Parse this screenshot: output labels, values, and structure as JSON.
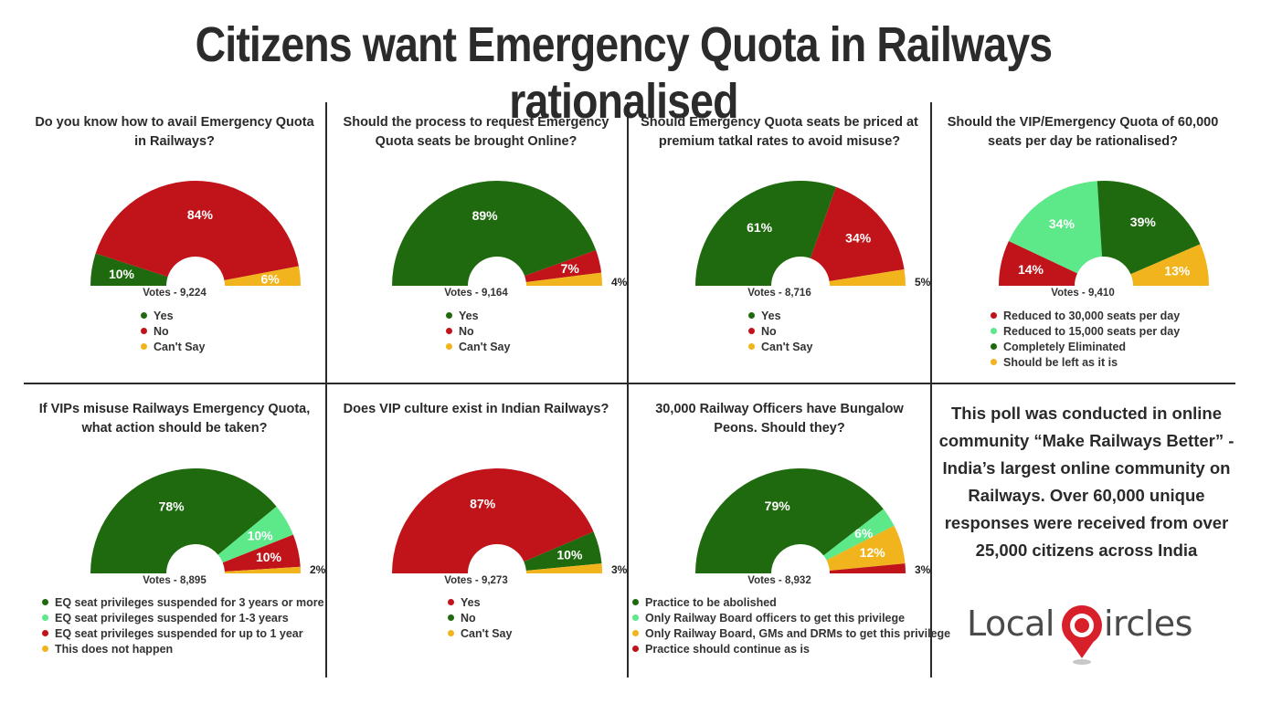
{
  "title": "Citizens want Emergency Quota in Railways rationalised",
  "colors": {
    "yes": "#1f6a0e",
    "no": "#c0141a",
    "cantsay": "#f1b41d",
    "light_green": "#5de88a",
    "divider": "#2a2a2a"
  },
  "chart_data": [
    {
      "type": "pie",
      "title": "Do you know how to avail Emergency Quota in Railways?",
      "votes": "Votes - 9,224",
      "slices": [
        {
          "label": "Yes",
          "value": 10,
          "text": "10%",
          "color": "#1f6a0e"
        },
        {
          "label": "No",
          "value": 84,
          "text": "84%",
          "color": "#c0141a"
        },
        {
          "label": "Can't Say",
          "value": 6,
          "text": "6%",
          "color": "#f1b41d"
        }
      ]
    },
    {
      "type": "pie",
      "title": "Should the process to request Emergency Quota seats be brought Online?",
      "votes": "Votes - 9,164",
      "slices": [
        {
          "label": "Yes",
          "value": 89,
          "text": "89%",
          "color": "#1f6a0e"
        },
        {
          "label": "No",
          "value": 7,
          "text": "7%",
          "color": "#c0141a"
        },
        {
          "label": "Can't Say",
          "value": 4,
          "text": "4%",
          "color": "#f1b41d"
        }
      ]
    },
    {
      "type": "pie",
      "title": "Should Emergency Quota seats be priced at premium tatkal rates to avoid misuse?",
      "votes": "Votes - 8,716",
      "slices": [
        {
          "label": "Yes",
          "value": 61,
          "text": "61%",
          "color": "#1f6a0e"
        },
        {
          "label": "No",
          "value": 34,
          "text": "34%",
          "color": "#c0141a"
        },
        {
          "label": "Can't Say",
          "value": 5,
          "text": "5%",
          "color": "#f1b41d"
        }
      ]
    },
    {
      "type": "pie",
      "title": "Should the VIP/Emergency Quota of 60,000 seats per day be rationalised?",
      "votes": "Votes - 9,410",
      "slices": [
        {
          "label": "Reduced to 30,000 seats per day",
          "value": 14,
          "text": "14%",
          "color": "#c0141a"
        },
        {
          "label": "Reduced to 15,000 seats per day",
          "value": 34,
          "text": "34%",
          "color": "#5de88a"
        },
        {
          "label": "Completely Eliminated",
          "value": 39,
          "text": "39%",
          "color": "#1f6a0e"
        },
        {
          "label": "Should be left as it is",
          "value": 13,
          "text": "13%",
          "color": "#f1b41d"
        }
      ]
    },
    {
      "type": "pie",
      "title": "If VIPs misuse Railways Emergency Quota, what action should be taken?",
      "votes": "Votes - 8,895",
      "slices": [
        {
          "label": "EQ seat privileges suspended for 3 years or more",
          "value": 78,
          "text": "78%",
          "color": "#1f6a0e"
        },
        {
          "label": "EQ seat privileges suspended for 1-3 years",
          "value": 10,
          "text": "10%",
          "color": "#5de88a"
        },
        {
          "label": "EQ seat privileges suspended for up to 1 year",
          "value": 10,
          "text": "10%",
          "color": "#c0141a"
        },
        {
          "label": "This does not happen",
          "value": 2,
          "text": "2%",
          "color": "#f1b41d"
        }
      ]
    },
    {
      "type": "pie",
      "title": "Does VIP culture exist in Indian Railways?",
      "votes": "Votes - 9,273",
      "slices": [
        {
          "label": "Yes",
          "value": 87,
          "text": "87%",
          "color": "#c0141a"
        },
        {
          "label": "No",
          "value": 10,
          "text": "10%",
          "color": "#1f6a0e"
        },
        {
          "label": "Can't Say",
          "value": 3,
          "text": "3%",
          "color": "#f1b41d"
        }
      ]
    },
    {
      "type": "pie",
      "title": "30,000 Railway Officers have Bungalow Peons. Should they?",
      "votes": "Votes - 8,932",
      "slices": [
        {
          "label": "Practice to be abolished",
          "value": 79,
          "text": "79%",
          "color": "#1f6a0e"
        },
        {
          "label": "Only Railway Board officers to get this privilege",
          "value": 6,
          "text": "6%",
          "color": "#5de88a"
        },
        {
          "label": "Only Railway Board, GMs and DRMs to get this privilege",
          "value": 12,
          "text": "12%",
          "color": "#f1b41d"
        },
        {
          "label": "Practice should continue as is",
          "value": 3,
          "text": "3%",
          "color": "#c0141a"
        }
      ]
    }
  ],
  "info_text": "This poll was conducted in online community “Make Railways Better” - India’s largest online community on Railways. Over 60,000 unique responses were received from over 25,000 citizens across India",
  "logo": {
    "part1": "Local",
    "part2": "ircles",
    "mark": "C"
  }
}
